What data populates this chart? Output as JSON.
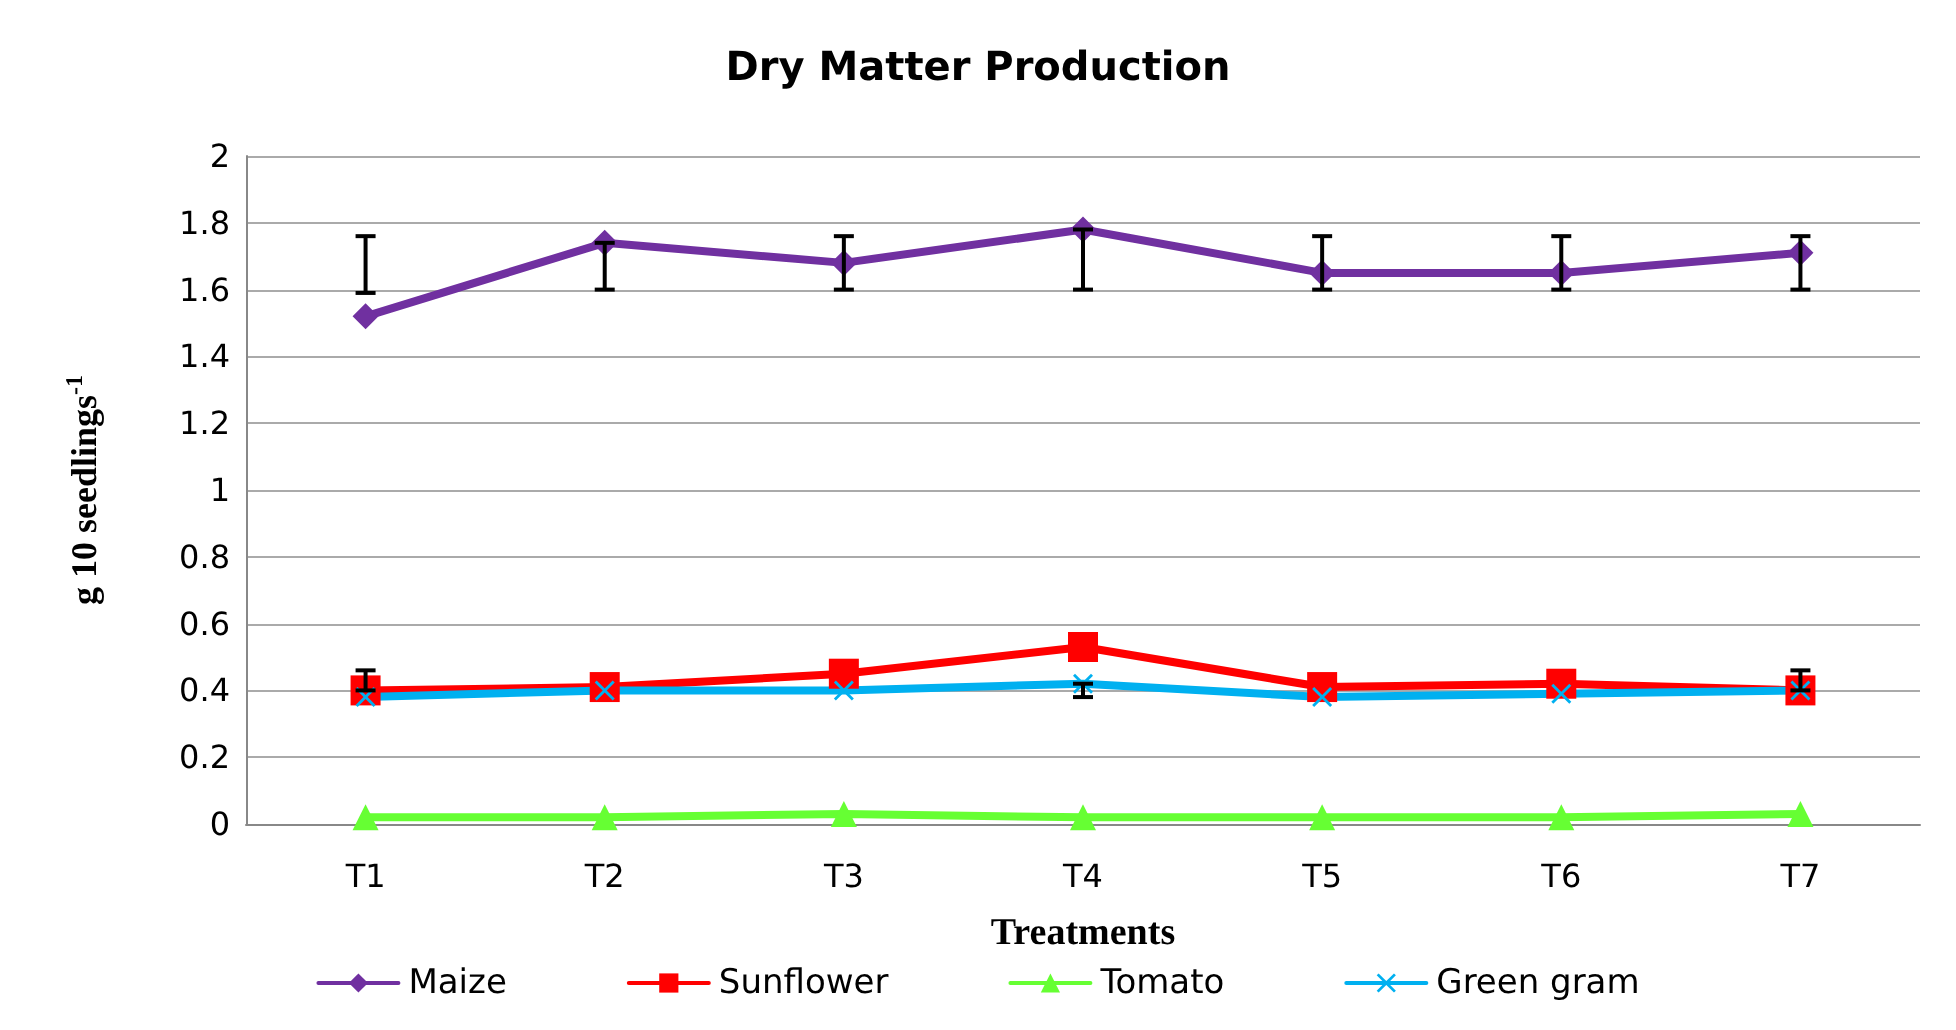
{
  "chart_data": {
    "type": "line",
    "title": "Dry Matter Production",
    "xlabel": "Treatments",
    "ylabel": "g 10 seedlings$^{-1}$",
    "categories": [
      "T1",
      "T2",
      "T3",
      "T4",
      "T5",
      "T6",
      "T7"
    ],
    "series": [
      {
        "name": "Maize",
        "color": "#7030a0",
        "marker": "diamond",
        "values": [
          1.52,
          1.74,
          1.68,
          1.78,
          1.65,
          1.65,
          1.71
        ],
        "errors": [
          [
            1.59,
            1.76
          ],
          [
            1.6,
            1.74
          ],
          [
            1.6,
            1.76
          ],
          [
            1.6,
            1.78
          ],
          [
            1.6,
            1.76
          ],
          [
            1.6,
            1.76
          ],
          [
            1.6,
            1.76
          ]
        ]
      },
      {
        "name": "Sunflower",
        "color": "#ff0000",
        "marker": "square",
        "values": [
          0.4,
          0.41,
          0.45,
          0.53,
          0.41,
          0.42,
          0.4
        ],
        "errors": [
          [
            0.4,
            0.46
          ],
          null,
          null,
          null,
          null,
          null,
          [
            0.4,
            0.46
          ]
        ]
      },
      {
        "name": "Tomato",
        "color": "#66ff33",
        "marker": "triangle",
        "values": [
          0.02,
          0.02,
          0.03,
          0.02,
          0.02,
          0.02,
          0.03
        ]
      },
      {
        "name": "Green gram",
        "color": "#00b0f0",
        "marker": "cross",
        "values": [
          0.38,
          0.4,
          0.4,
          0.42,
          0.38,
          0.39,
          0.4
        ],
        "errors": [
          null,
          null,
          null,
          [
            0.38,
            0.42
          ],
          null,
          null,
          null
        ]
      }
    ],
    "ylim": [
      0,
      2
    ],
    "yticks": [
      0,
      0.2,
      0.4,
      0.6,
      0.8,
      1,
      1.2,
      1.4,
      1.6,
      1.8,
      2
    ],
    "grid": "y",
    "legend": "bottom"
  }
}
